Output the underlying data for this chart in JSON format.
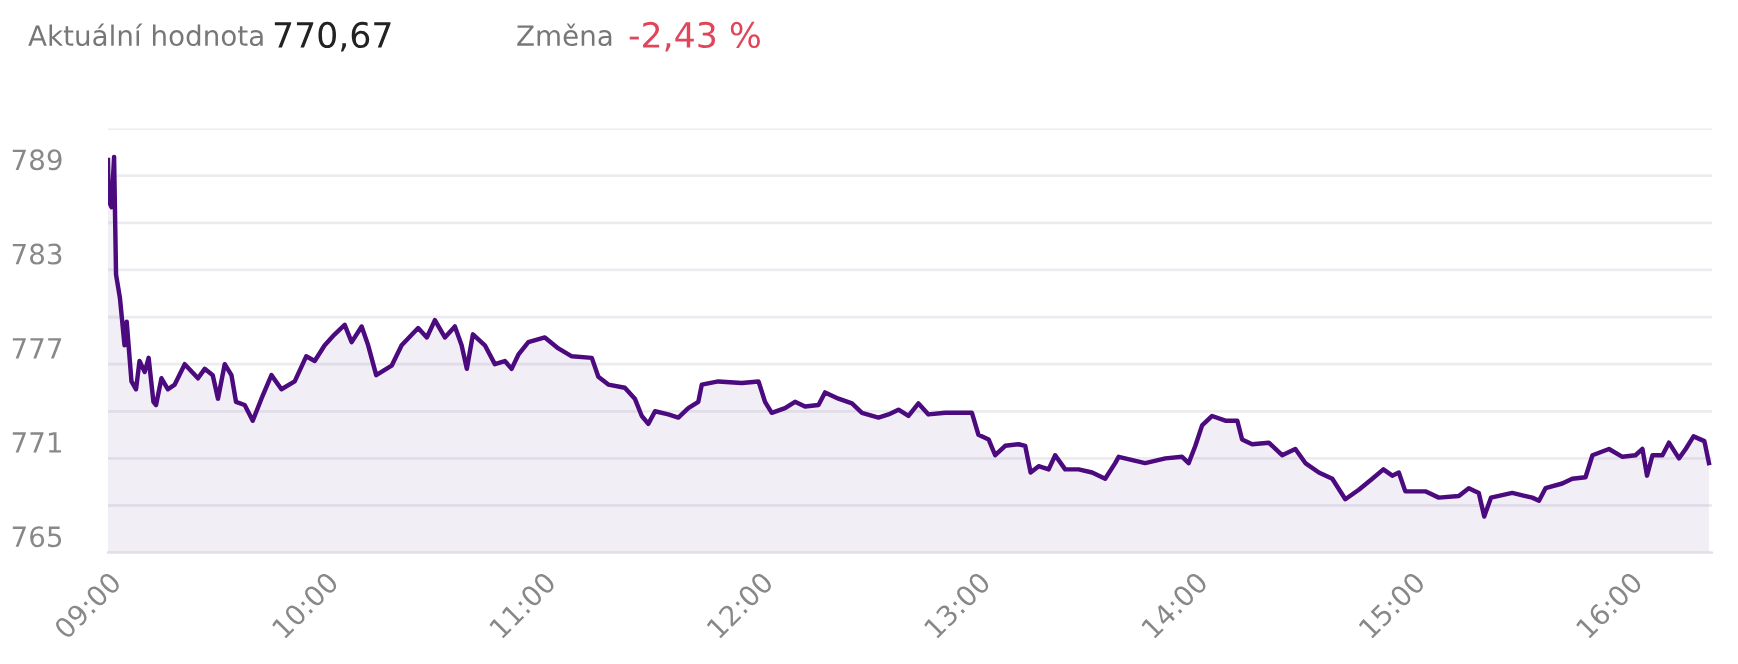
{
  "chart_data": {
    "type": "area",
    "annotations": [
      "Aktuální hodnota",
      "770,67",
      "Změna",
      "-2,43 %"
    ],
    "x": [
      9.0,
      9.003,
      9.016,
      9.028,
      9.037,
      9.055,
      9.076,
      9.086,
      9.108,
      9.129,
      9.145,
      9.169,
      9.187,
      9.209,
      9.221,
      9.246,
      9.276,
      9.307,
      9.353,
      9.414,
      9.445,
      9.482,
      9.506,
      9.537,
      9.568,
      9.589,
      9.629,
      9.666,
      9.706,
      9.752,
      9.798,
      9.859,
      9.912,
      9.951,
      9.997,
      10.043,
      10.089,
      10.121,
      10.167,
      10.197,
      10.234,
      10.305,
      10.351,
      10.427,
      10.467,
      10.504,
      10.55,
      10.596,
      10.627,
      10.651,
      10.679,
      10.734,
      10.78,
      10.826,
      10.857,
      10.888,
      10.934,
      11.01,
      11.072,
      11.134,
      11.226,
      11.256,
      11.302,
      11.378,
      11.424,
      11.456,
      11.486,
      11.517,
      11.578,
      11.624,
      11.67,
      11.716,
      11.732,
      11.808,
      11.916,
      11.993,
      12.023,
      12.054,
      12.115,
      12.161,
      12.207,
      12.269,
      12.299,
      12.361,
      12.423,
      12.469,
      12.545,
      12.591,
      12.637,
      12.683,
      12.729,
      12.775,
      12.852,
      12.975,
      13.005,
      13.052,
      13.082,
      13.128,
      13.19,
      13.22,
      13.245,
      13.282,
      13.328,
      13.358,
      13.404,
      13.466,
      13.528,
      13.588,
      13.634,
      13.65,
      13.772,
      13.865,
      13.942,
      13.972,
      14.003,
      14.034,
      14.08,
      14.141,
      14.196,
      14.218,
      14.264,
      14.341,
      14.402,
      14.463,
      14.509,
      14.571,
      14.633,
      14.693,
      14.755,
      14.817,
      14.868,
      14.909,
      14.939,
      14.969,
      15.061,
      15.123,
      15.215,
      15.261,
      15.307,
      15.332,
      15.363,
      15.461,
      15.553,
      15.584,
      15.614,
      15.691,
      15.737,
      15.798,
      15.83,
      15.906,
      15.968,
      16.028,
      16.06,
      16.081,
      16.106,
      16.152,
      16.182,
      16.228,
      16.259,
      16.295,
      16.345,
      16.366
    ],
    "series": [
      {
        "color": "#4b0a7d",
        "values": [
          790.0,
          787.4,
          787.0,
          790.2,
          782.7,
          781.2,
          778.2,
          779.7,
          775.9,
          775.4,
          777.2,
          776.5,
          777.4,
          774.6,
          774.4,
          776.1,
          775.4,
          775.7,
          777.0,
          776.1,
          776.7,
          776.3,
          774.8,
          777.0,
          776.3,
          774.6,
          774.4,
          773.4,
          774.8,
          776.3,
          775.4,
          775.9,
          777.5,
          777.2,
          778.2,
          778.9,
          779.5,
          778.4,
          779.4,
          778.2,
          776.3,
          776.9,
          778.2,
          779.3,
          778.7,
          779.8,
          778.7,
          779.4,
          778.2,
          776.7,
          778.9,
          778.2,
          777.0,
          777.2,
          776.7,
          777.6,
          778.4,
          778.7,
          778.0,
          777.5,
          777.4,
          776.2,
          775.7,
          775.5,
          774.8,
          773.7,
          773.2,
          774.0,
          773.8,
          773.6,
          774.2,
          774.6,
          775.7,
          775.9,
          775.8,
          775.9,
          774.6,
          773.9,
          774.2,
          774.6,
          774.3,
          774.4,
          775.2,
          774.8,
          774.5,
          773.9,
          773.6,
          773.8,
          774.1,
          773.7,
          774.5,
          773.8,
          773.9,
          773.9,
          772.5,
          772.2,
          771.2,
          771.8,
          771.9,
          771.8,
          770.1,
          770.5,
          770.3,
          771.2,
          770.3,
          770.3,
          770.1,
          769.7,
          770.7,
          771.1,
          770.7,
          771.0,
          771.1,
          770.7,
          771.8,
          773.1,
          773.7,
          773.4,
          773.4,
          772.2,
          771.9,
          772.0,
          771.2,
          771.6,
          770.7,
          770.1,
          769.7,
          768.4,
          769.0,
          769.7,
          770.3,
          769.9,
          770.1,
          768.9,
          768.9,
          768.5,
          768.6,
          769.1,
          768.8,
          767.3,
          768.5,
          768.8,
          768.5,
          768.3,
          769.1,
          769.4,
          769.7,
          769.8,
          771.2,
          771.6,
          771.1,
          771.2,
          771.6,
          769.9,
          771.2,
          771.2,
          772.0,
          771.0,
          771.6,
          772.4,
          772.1,
          770.7
        ]
      }
    ],
    "xlim": [
      9.0,
      16.38
    ],
    "xticks": [
      {
        "value": 9,
        "label": "09:00"
      },
      {
        "value": 10,
        "label": "10:00"
      },
      {
        "value": 11,
        "label": "11:00"
      },
      {
        "value": 12,
        "label": "12:00"
      },
      {
        "value": 13,
        "label": "13:00"
      },
      {
        "value": 14,
        "label": "14:00"
      },
      {
        "value": 15,
        "label": "15:00"
      },
      {
        "value": 16,
        "label": "16:00"
      }
    ],
    "ylim": [
      765,
      792
    ],
    "yticks": [
      765,
      {
        "value": 768,
        "label": null
      },
      771,
      {
        "value": 774,
        "label": null
      },
      777,
      {
        "value": 780,
        "label": null
      },
      783,
      {
        "value": 786,
        "label": null
      },
      789,
      {
        "value": 792,
        "label": null
      }
    ],
    "grid": "y",
    "line_style": "solid",
    "marker": "none"
  }
}
